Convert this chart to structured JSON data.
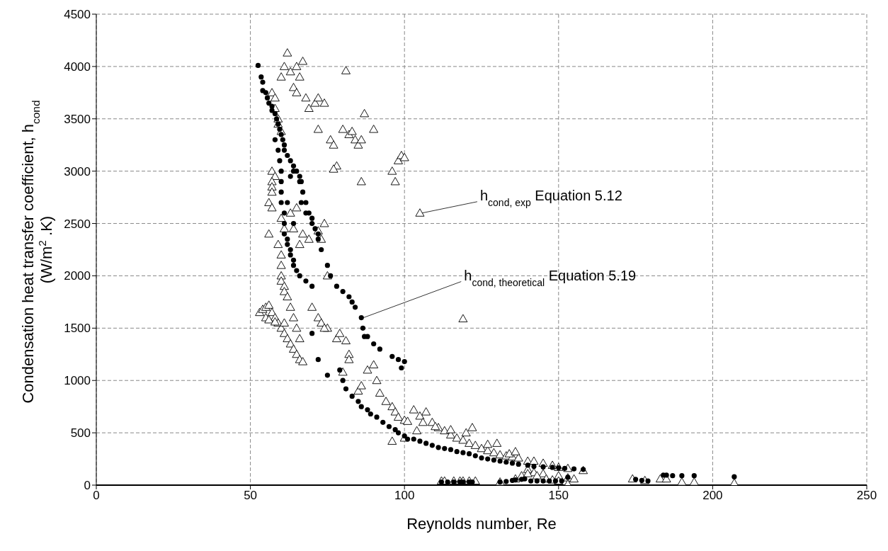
{
  "chart_data": {
    "type": "scatter",
    "xlabel": "Reynolds number, Re",
    "ylabel": "Condensation heat transfer coefficient, h$_{cond}$\n(W/m$^{2}$.K)",
    "xlim": [
      0,
      250
    ],
    "xticks": [
      0,
      50,
      100,
      150,
      200,
      250
    ],
    "ylim": [
      0,
      4500
    ],
    "yticks": [
      0,
      500,
      1000,
      1500,
      2000,
      2500,
      3000,
      3500,
      4000,
      4500
    ],
    "grid": true,
    "legend": false,
    "annotations": [
      {
        "text": "h$_{cond, exp}$ Equation 5.12",
        "x": 105,
        "y": 2600
      },
      {
        "text": "h$_{cond, theoretical}$Equation 5.19",
        "x": 86,
        "y": 1600
      }
    ],
    "series": [
      {
        "color": "#000000",
        "marker": "circle",
        "x": [
          52.5,
          53.5,
          54,
          54,
          55,
          55.5,
          56,
          57,
          57,
          58,
          58.5,
          59,
          59.5,
          60,
          60.5,
          61,
          61,
          62,
          63,
          64,
          65,
          66,
          66.5,
          67,
          68,
          69,
          70,
          71,
          72,
          73,
          75,
          76,
          78,
          80,
          82,
          83,
          84,
          86,
          86.5,
          87,
          88,
          90,
          92,
          96,
          98,
          100,
          99,
          58,
          59,
          59.5,
          60,
          60,
          60,
          60,
          61,
          61,
          61,
          62,
          62,
          63,
          63,
          64,
          64,
          65,
          66,
          68,
          70,
          64,
          62,
          63,
          64,
          66,
          66.5,
          68,
          70,
          72,
          70,
          72,
          75,
          79,
          80,
          81,
          83,
          85,
          86,
          88,
          89,
          91,
          93,
          95,
          97,
          98,
          100,
          101,
          103,
          105,
          107,
          109,
          111,
          113,
          115,
          117,
          119,
          121,
          123,
          125,
          127,
          129,
          131,
          133,
          135,
          137,
          140,
          142,
          145,
          148,
          150,
          152,
          155,
          158,
          112,
          114,
          116,
          118,
          119,
          121,
          122,
          131,
          133,
          135,
          136,
          138,
          139,
          141,
          143,
          145,
          147,
          149,
          151,
          153,
          175,
          177,
          179,
          184,
          185,
          187,
          190,
          194,
          207
        ],
        "values": [
          4010,
          3900,
          3850,
          3770,
          3750,
          3700,
          3650,
          3620,
          3580,
          3550,
          3500,
          3450,
          3400,
          3350,
          3300,
          3250,
          3200,
          3150,
          3100,
          3050,
          3000,
          2950,
          2900,
          2800,
          2700,
          2600,
          2550,
          2450,
          2350,
          2250,
          2100,
          2000,
          1900,
          1850,
          1800,
          1750,
          1700,
          1600,
          1500,
          1420,
          1420,
          1350,
          1300,
          1230,
          1200,
          1180,
          1120,
          3300,
          3200,
          3100,
          3000,
          2900,
          2800,
          2700,
          2600,
          2500,
          2400,
          2350,
          2300,
          2250,
          2200,
          2150,
          2100,
          2050,
          2000,
          1950,
          1900,
          2500,
          2700,
          2950,
          3000,
          2900,
          2700,
          2600,
          2500,
          2400,
          1450,
          1200,
          1050,
          1100,
          1000,
          920,
          850,
          800,
          750,
          720,
          680,
          650,
          600,
          560,
          530,
          500,
          470,
          440,
          440,
          420,
          400,
          380,
          360,
          350,
          340,
          320,
          310,
          300,
          280,
          260,
          250,
          240,
          230,
          220,
          210,
          200,
          190,
          180,
          175,
          170,
          165,
          160,
          155,
          150,
          30,
          30,
          30,
          30,
          30,
          30,
          30,
          30,
          35,
          45,
          50,
          55,
          60,
          40,
          40,
          40,
          40,
          40,
          40,
          75,
          55,
          45,
          40,
          95,
          95,
          90,
          90,
          90,
          80
        ]
      },
      {
        "color": "#000000",
        "marker": "triangle",
        "x": [
          60,
          61,
          62,
          63,
          64,
          65,
          66,
          67,
          65,
          68,
          69,
          71,
          72,
          74,
          76,
          77,
          72,
          80,
          82,
          83,
          84,
          85,
          86,
          87,
          81,
          78,
          77,
          86,
          90,
          96,
          97,
          98,
          99,
          100,
          105,
          119,
          57,
          58,
          58,
          59,
          59,
          60,
          57,
          58,
          57,
          57,
          57,
          56,
          57,
          60,
          61,
          56,
          59,
          60,
          60,
          60,
          60,
          61,
          61,
          62,
          63,
          65,
          64,
          67,
          66,
          69,
          72,
          73,
          75,
          75,
          82,
          74,
          53,
          54,
          55,
          56,
          57,
          58,
          59,
          60,
          61,
          62,
          63,
          64,
          65,
          66,
          67,
          55,
          56,
          58,
          61,
          63,
          64,
          65,
          66,
          70,
          72,
          73,
          74,
          78,
          79,
          81,
          85,
          86,
          80,
          82,
          88,
          90,
          91,
          92,
          94,
          96,
          97,
          98,
          100,
          101,
          103,
          105,
          107,
          109,
          111,
          113,
          115,
          117,
          119,
          121,
          123,
          125,
          127,
          129,
          131,
          133,
          135,
          137,
          140,
          142,
          145,
          148,
          150,
          153,
          158,
          96,
          100,
          104,
          106,
          110,
          115,
          120,
          122,
          127,
          130,
          134,
          136,
          140,
          142,
          145,
          150,
          153,
          155,
          112,
          113,
          116,
          118,
          119,
          121,
          123,
          131,
          136,
          138,
          140,
          143,
          146,
          148,
          150,
          153,
          174,
          178,
          183,
          185,
          190,
          194,
          207
        ],
        "values": [
          3900,
          4000,
          4130,
          3950,
          3800,
          3750,
          3900,
          4050,
          4000,
          3700,
          3600,
          3650,
          3700,
          3650,
          3300,
          3250,
          3400,
          3400,
          3350,
          3380,
          3300,
          3250,
          3300,
          3550,
          3960,
          3050,
          3020,
          2900,
          3400,
          3000,
          2900,
          3100,
          3150,
          3130,
          2600,
          1590,
          3750,
          3700,
          3600,
          3500,
          3450,
          3380,
          3000,
          2950,
          2900,
          2850,
          2800,
          2700,
          2650,
          2550,
          2450,
          2400,
          2300,
          2200,
          2100,
          2000,
          1950,
          1900,
          1850,
          1800,
          2600,
          2650,
          2450,
          2400,
          2300,
          2350,
          2430,
          2350,
          2000,
          1500,
          1250,
          2500,
          1650,
          1680,
          1700,
          1720,
          1650,
          1600,
          1550,
          1500,
          1450,
          1400,
          1350,
          1300,
          1250,
          1200,
          1180,
          1600,
          1580,
          1560,
          1550,
          1700,
          1600,
          1500,
          1400,
          1700,
          1600,
          1550,
          1500,
          1400,
          1450,
          1380,
          900,
          950,
          1080,
          1200,
          1100,
          1150,
          1000,
          880,
          800,
          750,
          700,
          650,
          620,
          610,
          720,
          660,
          700,
          600,
          550,
          520,
          480,
          450,
          430,
          400,
          380,
          350,
          330,
          310,
          290,
          280,
          270,
          260,
          230,
          230,
          210,
          190,
          170,
          160,
          140,
          420,
          450,
          520,
          600,
          560,
          530,
          500,
          550,
          390,
          400,
          300,
          320,
          150,
          120,
          110,
          90,
          70,
          60,
          40,
          40,
          40,
          40,
          40,
          40,
          40,
          30,
          60,
          90,
          110,
          90,
          60,
          50,
          40,
          10,
          60,
          45,
          60,
          60,
          30,
          30,
          20
        ]
      }
    ]
  }
}
